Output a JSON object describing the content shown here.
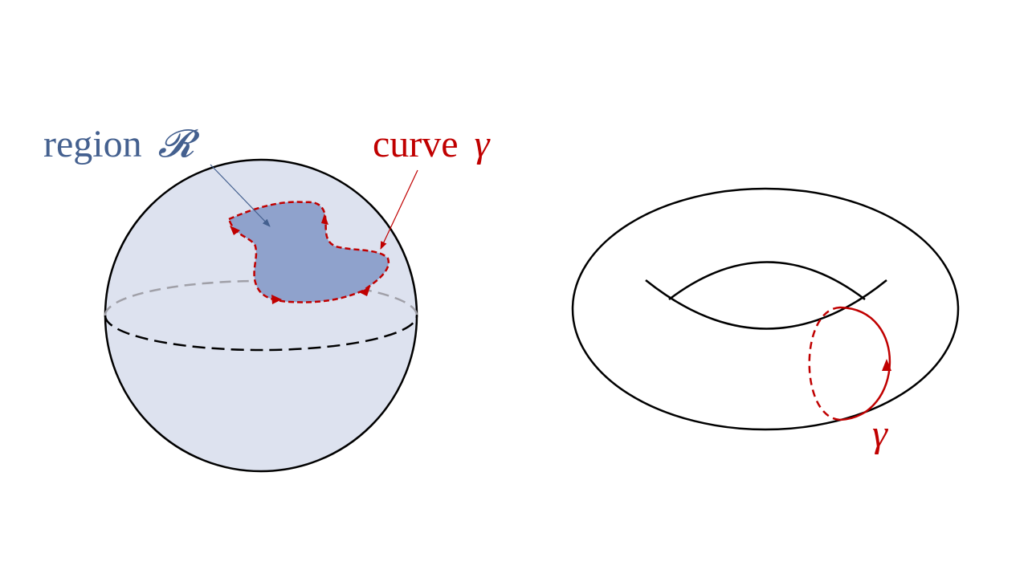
{
  "sphere": {
    "region_label": "region",
    "region_symbol": "𝓡",
    "curve_label": "curve",
    "curve_symbol": "γ"
  },
  "torus": {
    "curve_symbol": "γ"
  },
  "colors": {
    "region_text": "#44608f",
    "curve": "#c00000",
    "sphere_fill": "#dde2ef",
    "region_fill": "#8fa2cc",
    "outline": "#000000",
    "hidden_equator": "#a0a0a8"
  }
}
